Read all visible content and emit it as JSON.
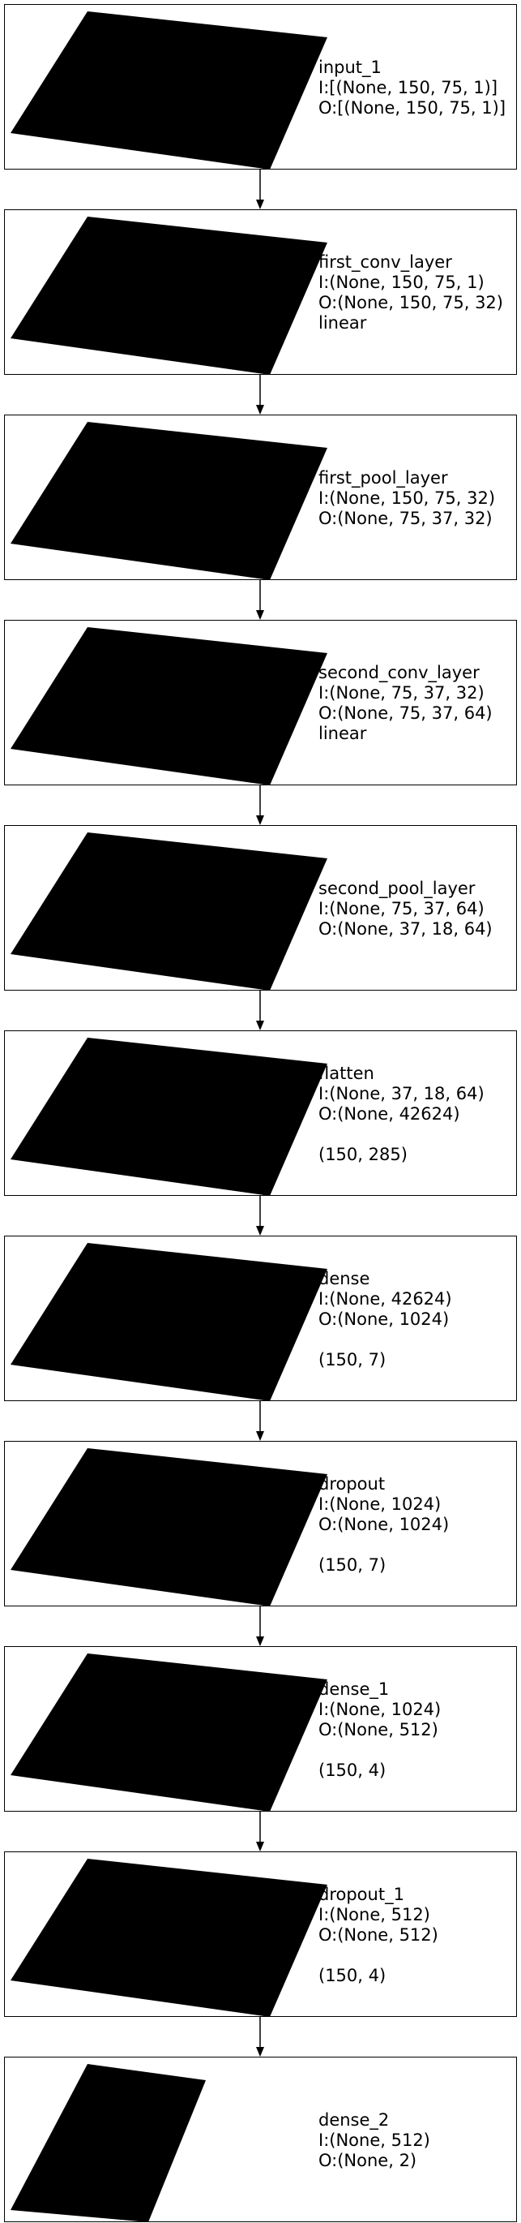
{
  "diagram": {
    "layers": [
      {
        "name": "input_1",
        "input": "I:[(None, 150, 75, 1)]",
        "output": "O:[(None, 150, 75, 1)]",
        "extra": "",
        "shape": ""
      },
      {
        "name": "first_conv_layer",
        "input": "I:(None, 150, 75, 1)",
        "output": "O:(None, 150, 75, 32)",
        "extra": "linear",
        "shape": ""
      },
      {
        "name": "first_pool_layer",
        "input": "I:(None, 150, 75, 32)",
        "output": "O:(None, 75, 37, 32)",
        "extra": "",
        "shape": ""
      },
      {
        "name": "second_conv_layer",
        "input": "I:(None, 75, 37, 32)",
        "output": "O:(None, 75, 37, 64)",
        "extra": "linear",
        "shape": ""
      },
      {
        "name": "second_pool_layer",
        "input": "I:(None, 75, 37, 64)",
        "output": "O:(None, 37, 18, 64)",
        "extra": "",
        "shape": ""
      },
      {
        "name": "flatten",
        "input": "I:(None, 37, 18, 64)",
        "output": "O:(None, 42624)",
        "extra": "",
        "shape": "(150, 285)"
      },
      {
        "name": "dense",
        "input": "I:(None, 42624)",
        "output": "O:(None, 1024)",
        "extra": "",
        "shape": "(150, 7)"
      },
      {
        "name": "dropout",
        "input": "I:(None, 1024)",
        "output": "O:(None, 1024)",
        "extra": "",
        "shape": "(150, 7)"
      },
      {
        "name": "dense_1",
        "input": "I:(None, 1024)",
        "output": "O:(None, 512)",
        "extra": "",
        "shape": "(150, 4)"
      },
      {
        "name": "dropout_1",
        "input": "I:(None, 512)",
        "output": "O:(None, 512)",
        "extra": "",
        "shape": "(150, 4)"
      },
      {
        "name": "dense_2",
        "input": "I:(None, 512)",
        "output": "O:(None, 2)",
        "extra": "",
        "shape": ""
      }
    ],
    "colors": {
      "box_border": "#000000",
      "tile_fill": "#000000",
      "arrow": "#000000",
      "background": "#ffffff"
    }
  }
}
